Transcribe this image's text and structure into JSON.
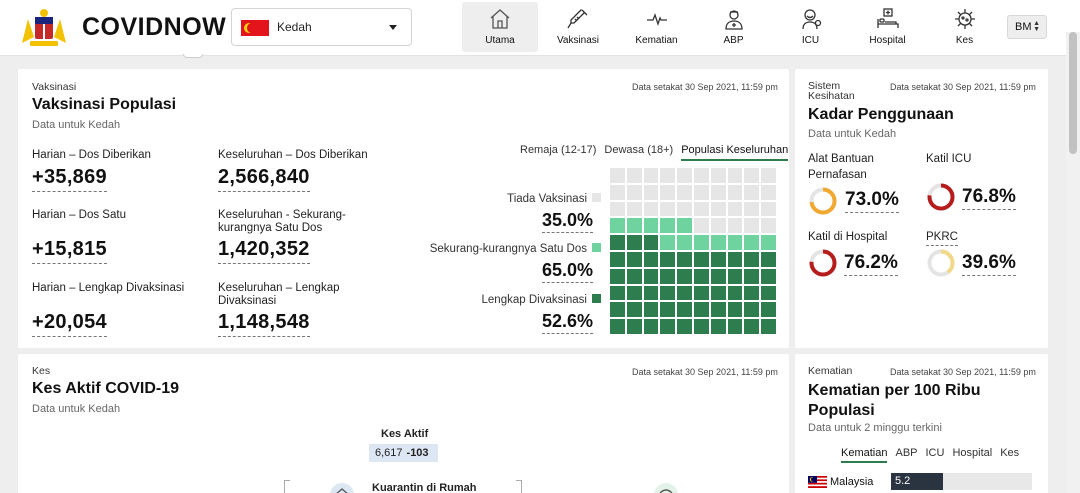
{
  "app": {
    "brand": "COVIDNOW",
    "language": "BM"
  },
  "state_select": {
    "value": "Kedah"
  },
  "nav": [
    {
      "label": "Utama",
      "icon": "home-icon",
      "active": true
    },
    {
      "label": "Vaksinasi",
      "icon": "syringe-icon"
    },
    {
      "label": "Kematian",
      "icon": "pulse-icon"
    },
    {
      "label": "ABP",
      "icon": "medical-staff-icon"
    },
    {
      "label": "ICU",
      "icon": "icu-patient-icon"
    },
    {
      "label": "Hospital",
      "icon": "hospital-bed-icon"
    },
    {
      "label": "Kes",
      "icon": "virus-icon"
    }
  ],
  "vaccination": {
    "kicker": "Vaksinasi",
    "title": "Vaksinasi Populasi",
    "subtitle": "Data untuk Kedah",
    "timestamp": "Data setakat 30 Sep 2021, 11:59 pm",
    "stats": {
      "daily_doses_label": "Harian – Dos Diberikan",
      "daily_doses": "+35,869",
      "total_doses_label": "Keseluruhan – Dos Diberikan",
      "total_doses": "2,566,840",
      "daily_first_label": "Harian – Dos Satu",
      "daily_first": "+15,815",
      "total_first_label": "Keseluruhan - Sekurang-kurangnya Satu Dos",
      "total_first": "1,420,352",
      "daily_full_label": "Harian – Lengkap Divaksinasi",
      "daily_full": "+20,054",
      "total_full_label": "Keseluruhan – Lengkap Divaksinasi",
      "total_full": "1,148,548"
    },
    "tabs": [
      "Remaja (12-17)",
      "Dewasa (18+)",
      "Populasi Keseluruhan"
    ],
    "active_tab": "Populasi Keseluruhan",
    "legend": {
      "none_label": "Tiada Vaksinasi",
      "none_pct": "35.0%",
      "partial_label": "Sekurang-kurangnya Satu Dos",
      "partial_pct": "65.0%",
      "full_label": "Lengkap Divaksinasi",
      "full_pct": "52.6%"
    },
    "waffle": {
      "grid": 10,
      "full_percent": 52.6,
      "partial_percent": 65.0
    },
    "colors": {
      "none": "#e6e6e6",
      "partial": "#6fd3a0",
      "full": "#2e7d4f"
    }
  },
  "utilisation": {
    "kicker": "Sistem Kesihatan",
    "title": "Kadar Penggunaan",
    "subtitle": "Data untuk Kedah",
    "timestamp": "Data setakat 30 Sep 2021, 11:59 pm",
    "gauges": [
      {
        "label": "Alat Bantuan Pernafasan",
        "value": "73.0%",
        "percent": 73.0,
        "color": "#f0a830"
      },
      {
        "label": "Katil ICU",
        "value": "76.8%",
        "percent": 76.8,
        "color": "#b71c1c"
      },
      {
        "label": "Katil di Hospital",
        "value": "76.2%",
        "percent": 76.2,
        "color": "#b71c1c"
      },
      {
        "label": "PKRC",
        "value": "39.6%",
        "percent": 39.6,
        "color": "#f2d98a"
      }
    ]
  },
  "cases": {
    "kicker": "Kes",
    "title": "Kes Aktif COVID-19",
    "subtitle": "Data untuk Kedah",
    "timestamp": "Data setakat 30 Sep 2021, 11:59 pm",
    "active_label": "Kes Aktif",
    "active_value": "6,617",
    "active_delta": "-103",
    "quarantine_label": "Kuarantin di Rumah"
  },
  "deaths": {
    "kicker": "Kematian",
    "title": "Kematian per 100 Ribu Populasi",
    "subtitle": "Data untuk 2 minggu terkini",
    "timestamp": "Data setakat 30 Sep 2021, 11:59 pm",
    "tabs": [
      "Kematian",
      "ABP",
      "ICU",
      "Hospital",
      "Kes"
    ],
    "active_tab": "Kematian",
    "rows": [
      {
        "label": "Malaysia",
        "value": "5.2",
        "share": 0.37
      }
    ]
  }
}
